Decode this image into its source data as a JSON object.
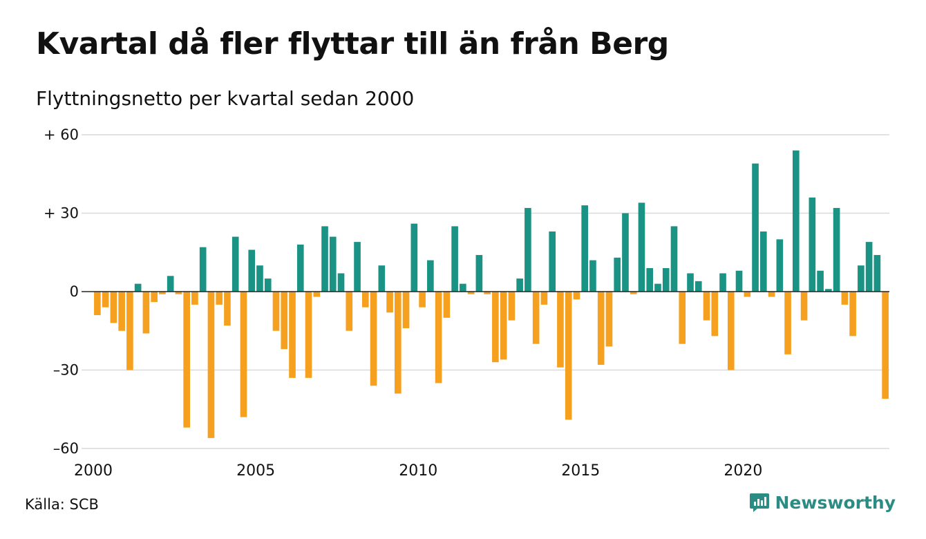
{
  "title": "Kvartal då fler flyttar till än från Berg",
  "subtitle": "Flyttningsnetto per kvartal sedan 2000",
  "source": "Källa: SCB",
  "brand": "Newsworthy",
  "colors": {
    "positive": "#1a9385",
    "negative": "#f5a11f",
    "grid": "#d9d9d9",
    "brand": "#2b8c83"
  },
  "chart_data": {
    "type": "bar",
    "ylim": [
      -60,
      60
    ],
    "yticks": [
      {
        "value": 60,
        "label": "+ 60"
      },
      {
        "value": 30,
        "label": "+ 30"
      },
      {
        "value": 0,
        "label": "0"
      },
      {
        "value": -30,
        "label": "–30"
      },
      {
        "value": -60,
        "label": "–60"
      }
    ],
    "xticks": [
      {
        "label": "2000",
        "value": 2000
      },
      {
        "label": "2005",
        "value": 2005
      },
      {
        "label": "2010",
        "value": 2010
      },
      {
        "label": "2015",
        "value": 2015
      },
      {
        "label": "2020",
        "value": 2020
      }
    ],
    "start_year": 2000,
    "period": "quarter",
    "values": [
      -9,
      -6,
      -12,
      -15,
      -30,
      3,
      -16,
      -4,
      -1,
      6,
      -1,
      -52,
      -5,
      17,
      -56,
      -5,
      -13,
      21,
      -48,
      16,
      10,
      5,
      -15,
      -22,
      -33,
      18,
      -33,
      -2,
      25,
      21,
      7,
      -15,
      19,
      -6,
      -36,
      10,
      -8,
      -39,
      -14,
      26,
      -6,
      12,
      -35,
      -10,
      25,
      3,
      -1,
      14,
      -1,
      -27,
      -26,
      -11,
      5,
      32,
      -20,
      -5,
      23,
      -29,
      -49,
      -3,
      33,
      12,
      -28,
      -21,
      13,
      30,
      -1,
      34,
      9,
      3,
      9,
      25,
      -20,
      7,
      4,
      -11,
      -17,
      7,
      -30,
      8,
      -2,
      49,
      23,
      -2,
      20,
      -24,
      54,
      -11,
      36,
      8,
      1,
      32,
      -5,
      -17,
      10,
      19,
      14,
      -41
    ]
  }
}
